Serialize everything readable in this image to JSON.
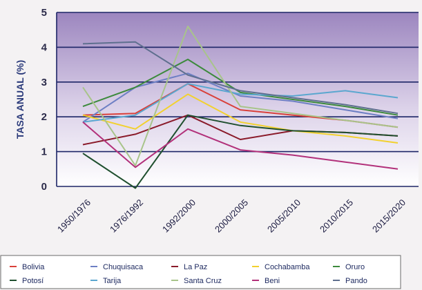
{
  "chart_data": {
    "type": "line",
    "ylabel": "TASA ANUAL (%)",
    "xlabel": "",
    "ylim": [
      0,
      5
    ],
    "y_ticks": [
      "0",
      "1",
      "2",
      "3",
      "4",
      "5"
    ],
    "categories": [
      "1950/1976",
      "1976/1992",
      "1992/2000",
      "2000/2005",
      "2005/2010",
      "2010/2015",
      "2015/2020"
    ],
    "grid": "horizontal",
    "legend": "bottom",
    "series": [
      {
        "name": "Bolivia",
        "color": "#d9403a",
        "values": [
          2.05,
          2.1,
          2.95,
          2.2,
          2.05,
          1.9,
          1.7
        ]
      },
      {
        "name": "Chuquisaca",
        "color": "#6d7fc4",
        "values": [
          1.85,
          2.85,
          3.25,
          2.6,
          2.45,
          2.2,
          1.95
        ]
      },
      {
        "name": "La Paz",
        "color": "#8a1a2a",
        "values": [
          1.2,
          1.5,
          2.05,
          1.35,
          1.6,
          1.55,
          1.45
        ]
      },
      {
        "name": "Cochabamba",
        "color": "#f2d12e",
        "values": [
          2.05,
          1.65,
          2.65,
          1.85,
          1.6,
          1.45,
          1.25
        ]
      },
      {
        "name": "Oruro",
        "color": "#3c8a3c",
        "values": [
          2.3,
          2.85,
          3.65,
          2.7,
          2.5,
          2.3,
          2.05
        ]
      },
      {
        "name": "Potosí",
        "color": "#1f4f2e",
        "values": [
          0.95,
          -0.05,
          2.05,
          1.75,
          1.6,
          1.55,
          1.45
        ]
      },
      {
        "name": "Tarija",
        "color": "#5aa7cf",
        "values": [
          1.85,
          2.05,
          2.95,
          2.65,
          2.6,
          2.75,
          2.55
        ]
      },
      {
        "name": "Santa Cruz",
        "color": "#a8c48a",
        "values": [
          2.85,
          0.6,
          4.6,
          2.3,
          2.1,
          1.9,
          1.7
        ]
      },
      {
        "name": "Beni",
        "color": "#b2307a",
        "values": [
          1.85,
          0.55,
          1.65,
          1.05,
          0.9,
          0.7,
          0.5
        ]
      },
      {
        "name": "Pando",
        "color": "#5e6f8e",
        "values": [
          4.1,
          4.15,
          3.2,
          2.75,
          2.55,
          2.35,
          2.1
        ]
      }
    ]
  }
}
